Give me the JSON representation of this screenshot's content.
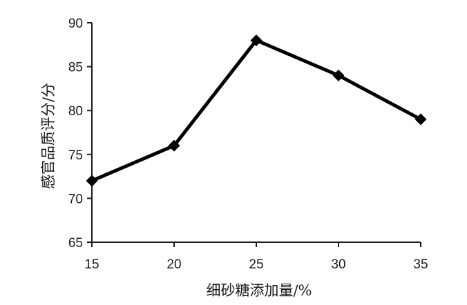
{
  "chart_data": {
    "type": "line",
    "x": [
      15,
      20,
      25,
      30,
      35
    ],
    "series": [
      {
        "values": [
          72,
          76,
          88,
          84,
          79
        ]
      }
    ],
    "xlabel": "细砂糖添加量/%",
    "ylabel": "感官品质评分/分",
    "xlim": [
      15,
      35
    ],
    "ylim": [
      65,
      90
    ],
    "xticks": [
      "15",
      "20",
      "25",
      "30",
      "35"
    ],
    "yticks": [
      "65",
      "70",
      "75",
      "80",
      "85",
      "90"
    ],
    "grid": false,
    "marker": "diamond",
    "line_color": "#000000"
  }
}
